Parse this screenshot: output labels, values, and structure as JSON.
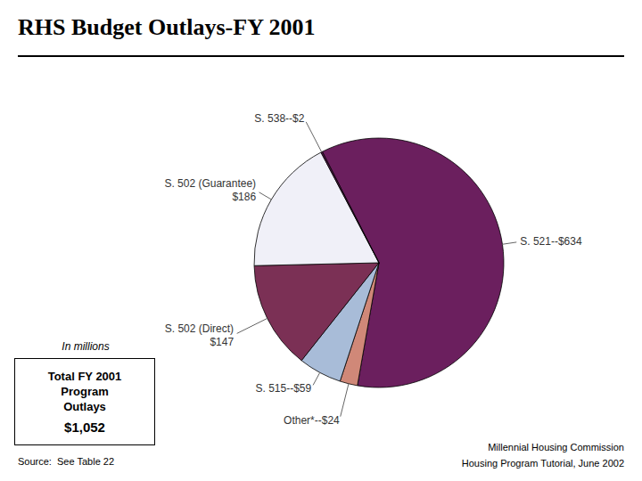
{
  "chart_data": {
    "type": "pie",
    "title": "RHS Budget Outlays-FY 2001",
    "categories": [
      "S. 521--$634",
      "Other*--$24",
      "S. 515--$59",
      "S. 502 (Direct)\n$147",
      "S. 502 (Guarantee)\n$186",
      "S. 538--$2"
    ],
    "values": [
      634,
      24,
      59,
      147,
      186,
      2
    ],
    "colors": [
      "#6b1f5e",
      "#d08878",
      "#a8bcd8",
      "#7b3055",
      "#f0f0f8",
      "#5a1a50"
    ],
    "annotations": [
      "In millions",
      "Total FY 2001\nProgram\nOutlays",
      "$1,052",
      "Source:  See Table 22",
      "Millennial Housing Commission",
      "Housing Program Tutorial, June 2002"
    ]
  }
}
